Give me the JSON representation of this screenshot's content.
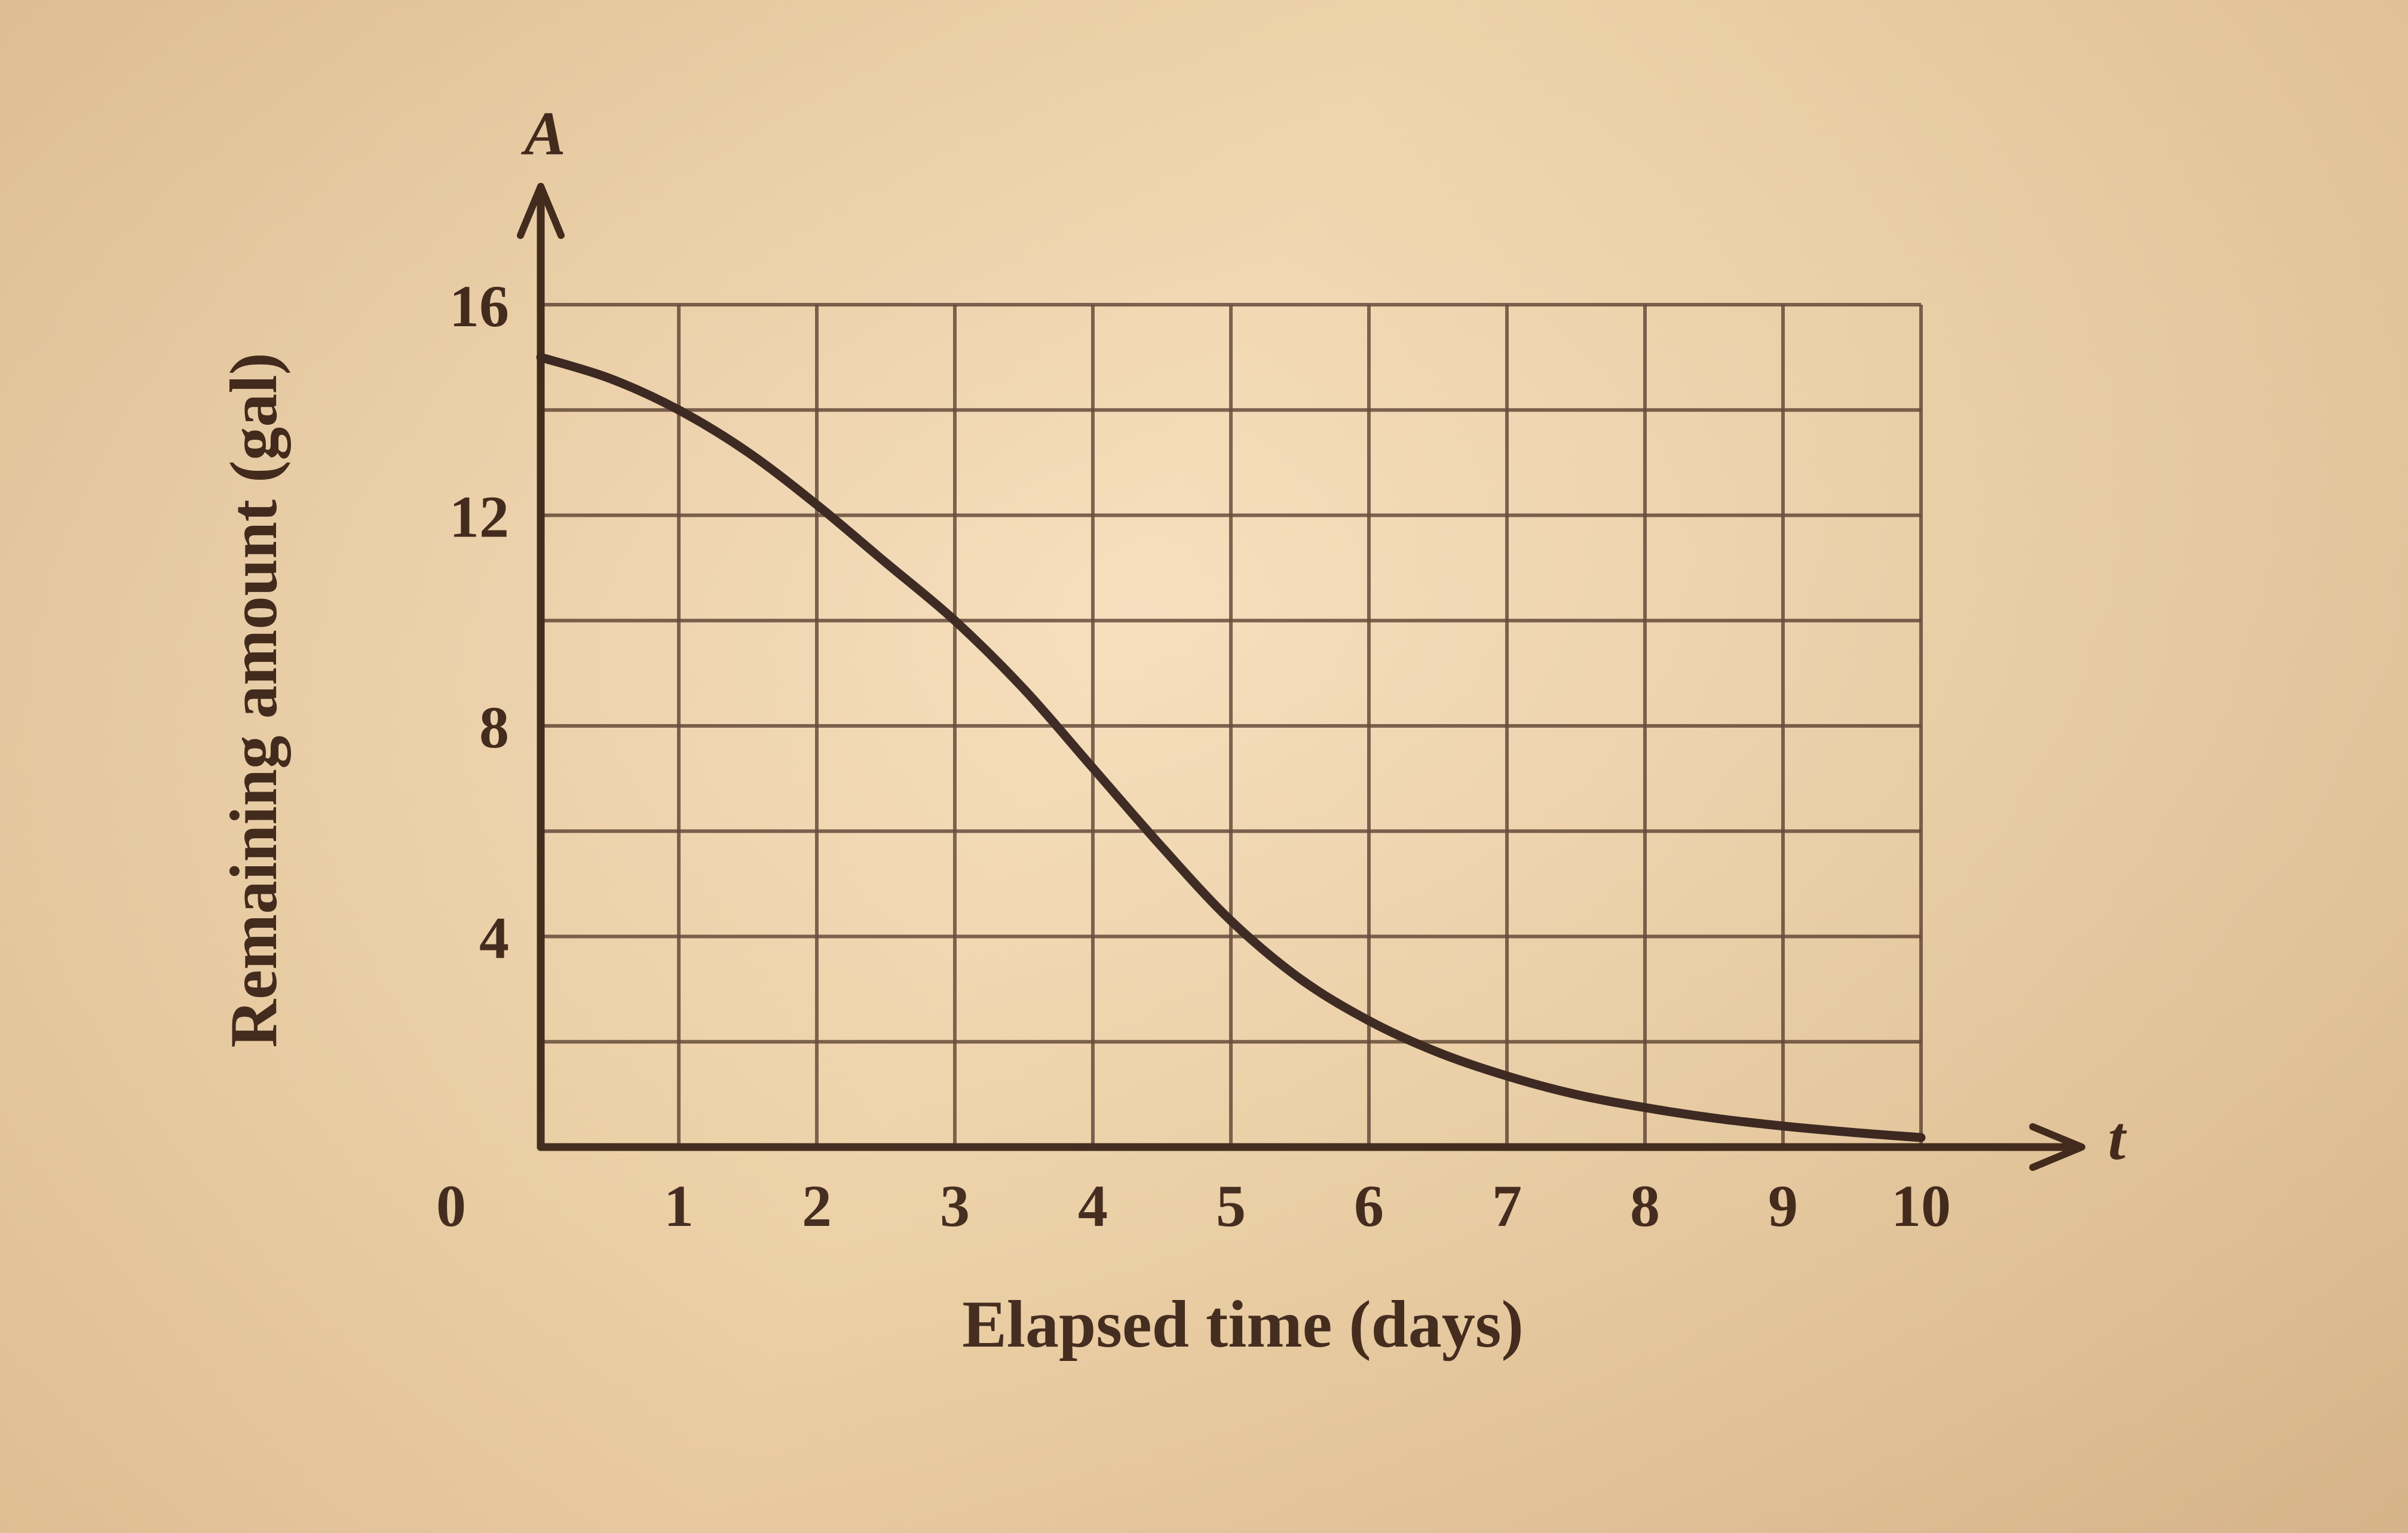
{
  "chart_data": {
    "type": "line",
    "title": "",
    "xlabel": "Elapsed time (days)",
    "ylabel": "Remaining amount (gal)",
    "x_axis_symbol": "t",
    "y_axis_symbol": "A",
    "xlim": [
      0,
      10
    ],
    "ylim": [
      0,
      16
    ],
    "x_ticks": [
      0,
      1,
      2,
      3,
      4,
      5,
      6,
      7,
      8,
      9,
      10
    ],
    "y_ticks": [
      4,
      8,
      12,
      16
    ],
    "x_grid_step": 1,
    "y_grid_step": 2,
    "grid": "on",
    "legend": "none",
    "series": [
      {
        "name": "remaining-amount",
        "x": [
          0,
          0.5,
          1,
          1.5,
          2,
          2.5,
          3,
          3.5,
          4,
          4.5,
          5,
          5.5,
          6,
          6.5,
          7,
          7.5,
          8,
          8.5,
          9,
          9.5,
          10
        ],
        "y": [
          15.0,
          14.6,
          14.0,
          13.2,
          12.2,
          11.1,
          10.0,
          8.7,
          7.2,
          5.7,
          4.3,
          3.2,
          2.4,
          1.8,
          1.35,
          1.0,
          0.75,
          0.55,
          0.4,
          0.28,
          0.18
        ]
      }
    ]
  },
  "colors": {
    "paper": "#eccfa4",
    "ink": "#3a2316",
    "grid": "#5f4433",
    "curve": "#33201a"
  }
}
